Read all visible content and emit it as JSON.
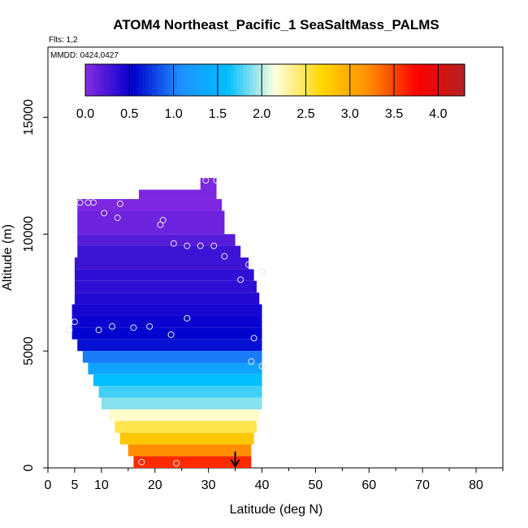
{
  "chart_data": {
    "type": "heatmap",
    "title": "ATOM4 Northeast_Pacific_1 SeaSaltMass_PALMS",
    "flights_label": "Flts: 1,2",
    "dates_label": "MMDD: 0424,0427",
    "xlabel": "Latitude (deg N)",
    "ylabel": "Altitude (m)",
    "xlim": [
      0,
      85
    ],
    "ylim": [
      0,
      18000
    ],
    "x_ticks": [
      0,
      5,
      10,
      20,
      30,
      40,
      50,
      60,
      70,
      80
    ],
    "y_ticks": [
      0,
      5000,
      10000,
      15000
    ],
    "colorbar": {
      "range": [
        0,
        4.3
      ],
      "ticks": [
        "0.0",
        "0.5",
        "1.0",
        "1.5",
        "2.0",
        "2.5",
        "3.0",
        "3.5",
        "4.0"
      ],
      "tick_values": [
        0,
        0.5,
        1.0,
        1.5,
        2.0,
        2.5,
        3.0,
        3.5,
        4.0
      ],
      "colors": [
        "#8a2be2",
        "#0000cd",
        "#1e90ff",
        "#00bfff",
        "#ffffe0",
        "#ffd700",
        "#ff8c00",
        "#ff0000",
        "#b22222"
      ]
    },
    "bands": [
      {
        "alt": [
          11500,
          12400
        ],
        "lat": [
          28.5,
          31.5
        ],
        "v": 0.05
      },
      {
        "alt": [
          11500,
          11900
        ],
        "lat": [
          17,
          31.5
        ],
        "v": 0.05
      },
      {
        "alt": [
          11000,
          11500
        ],
        "lat": [
          5.5,
          32.5
        ],
        "v": 0.05
      },
      {
        "alt": [
          10000,
          11000
        ],
        "lat": [
          5.5,
          33.0
        ],
        "v": 0.1
      },
      {
        "alt": [
          9500,
          10000
        ],
        "lat": [
          5.5,
          35.0
        ],
        "v": 0.2
      },
      {
        "alt": [
          9000,
          9500
        ],
        "lat": [
          5.5,
          36.0
        ],
        "v": 0.3
      },
      {
        "alt": [
          8500,
          9000
        ],
        "lat": [
          5.0,
          37.5
        ],
        "v": 0.3
      },
      {
        "alt": [
          8000,
          8500
        ],
        "lat": [
          5.0,
          38.5
        ],
        "v": 0.35
      },
      {
        "alt": [
          7500,
          8000
        ],
        "lat": [
          5.0,
          39.0
        ],
        "v": 0.35
      },
      {
        "alt": [
          7000,
          7500
        ],
        "lat": [
          5.0,
          39.5
        ],
        "v": 0.4
      },
      {
        "alt": [
          6500,
          7000
        ],
        "lat": [
          4.5,
          40.0
        ],
        "v": 0.45
      },
      {
        "alt": [
          6000,
          6500
        ],
        "lat": [
          4.5,
          40.0
        ],
        "v": 0.5
      },
      {
        "alt": [
          5500,
          6000
        ],
        "lat": [
          4.5,
          40.0
        ],
        "v": 0.55
      },
      {
        "alt": [
          5000,
          5500
        ],
        "lat": [
          5.5,
          40.0
        ],
        "v": 0.6
      },
      {
        "alt": [
          4500,
          5000
        ],
        "lat": [
          6.5,
          40.0
        ],
        "v": 1.0
      },
      {
        "alt": [
          4000,
          4500
        ],
        "lat": [
          7.5,
          40.0
        ],
        "v": 1.3
      },
      {
        "alt": [
          3500,
          4000
        ],
        "lat": [
          8.5,
          40.0
        ],
        "v": 1.6
      },
      {
        "alt": [
          3000,
          3500
        ],
        "lat": [
          9.5,
          40.0
        ],
        "v": 1.75
      },
      {
        "alt": [
          2500,
          3000
        ],
        "lat": [
          10.0,
          40.0
        ],
        "v": 1.9
      },
      {
        "alt": [
          2000,
          2500
        ],
        "lat": [
          11.5,
          39.5
        ],
        "v": 2.2
      },
      {
        "alt": [
          1500,
          2000
        ],
        "lat": [
          12.5,
          39.0
        ],
        "v": 2.5
      },
      {
        "alt": [
          1000,
          1500
        ],
        "lat": [
          13.5,
          38.5
        ],
        "v": 2.8
      },
      {
        "alt": [
          500,
          1000
        ],
        "lat": [
          15.0,
          38.0
        ],
        "v": 3.2
      },
      {
        "alt": [
          0,
          500
        ],
        "lat": [
          16.0,
          38.0
        ],
        "v": 3.6
      }
    ],
    "observations": [
      {
        "lat": 29.5,
        "alt": 12300
      },
      {
        "lat": 31.5,
        "alt": 12300
      },
      {
        "lat": 6.0,
        "alt": 11350
      },
      {
        "lat": 7.5,
        "alt": 11350
      },
      {
        "lat": 8.5,
        "alt": 11350
      },
      {
        "lat": 10.5,
        "alt": 10900
      },
      {
        "lat": 13.5,
        "alt": 11300
      },
      {
        "lat": 13.0,
        "alt": 10700
      },
      {
        "lat": 21.5,
        "alt": 10600
      },
      {
        "lat": 21.0,
        "alt": 10400
      },
      {
        "lat": 23.5,
        "alt": 9600
      },
      {
        "lat": 26.0,
        "alt": 9500
      },
      {
        "lat": 28.5,
        "alt": 9500
      },
      {
        "lat": 31.0,
        "alt": 9500
      },
      {
        "lat": 33.0,
        "alt": 9050
      },
      {
        "lat": 37.5,
        "alt": 8700
      },
      {
        "lat": 36.0,
        "alt": 8050
      },
      {
        "lat": 40.0,
        "alt": 8400
      },
      {
        "lat": 26.0,
        "alt": 6400
      },
      {
        "lat": 5.0,
        "alt": 6250
      },
      {
        "lat": 4.0,
        "alt": 5900
      },
      {
        "lat": 9.5,
        "alt": 5900
      },
      {
        "lat": 12.0,
        "alt": 6050
      },
      {
        "lat": 16.0,
        "alt": 6000
      },
      {
        "lat": 19.0,
        "alt": 6050
      },
      {
        "lat": 23.0,
        "alt": 5700
      },
      {
        "lat": 38.5,
        "alt": 5550
      },
      {
        "lat": 38.0,
        "alt": 4550
      },
      {
        "lat": 40.0,
        "alt": 4350
      },
      {
        "lat": 17.5,
        "alt": 250
      },
      {
        "lat": 24.0,
        "alt": 200
      }
    ],
    "arrow_marker": {
      "lat": 35.0,
      "alt_top": 700,
      "alt_bottom": 0
    }
  }
}
